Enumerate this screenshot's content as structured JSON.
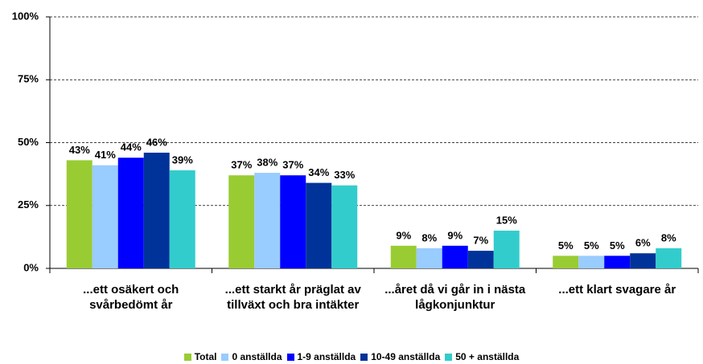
{
  "chart_data": {
    "type": "bar",
    "categories": [
      "...ett osäkert och svårbedömt år",
      "...ett starkt år präglat av tillväxt och bra intäkter",
      "...året då vi går in i nästa lågkonjunktur",
      "...ett klart svagare år"
    ],
    "series": [
      {
        "name": "Total",
        "color": "#99cc33",
        "values": [
          43,
          37,
          9,
          5
        ],
        "value_labels": [
          "43%",
          "37%",
          "9%",
          "5%"
        ]
      },
      {
        "name": "0 anställda",
        "color": "#99ccff",
        "values": [
          41,
          38,
          8,
          5
        ],
        "value_labels": [
          "41%",
          "38%",
          "8%",
          "5%"
        ]
      },
      {
        "name": "1-9 anställda",
        "color": "#0000ff",
        "values": [
          44,
          37,
          9,
          5
        ],
        "value_labels": [
          "44%",
          "37%",
          "9%",
          "5%"
        ]
      },
      {
        "name": "10-49 anställda",
        "color": "#003399",
        "values": [
          46,
          34,
          7,
          6
        ],
        "value_labels": [
          "46%",
          "34%",
          "7%",
          "6%"
        ]
      },
      {
        "name": "50 + anställda",
        "color": "#33cccc",
        "values": [
          39,
          33,
          15,
          8
        ],
        "value_labels": [
          "39%",
          "33%",
          "15%",
          "8%"
        ]
      }
    ],
    "ylim": [
      0,
      100
    ],
    "yticks": [
      {
        "value": 0,
        "label": "0%"
      },
      {
        "value": 25,
        "label": "25%"
      },
      {
        "value": 50,
        "label": "50%"
      },
      {
        "value": 75,
        "label": "75%"
      },
      {
        "value": 100,
        "label": "100%"
      }
    ],
    "grid": true,
    "legend": "bottom"
  }
}
